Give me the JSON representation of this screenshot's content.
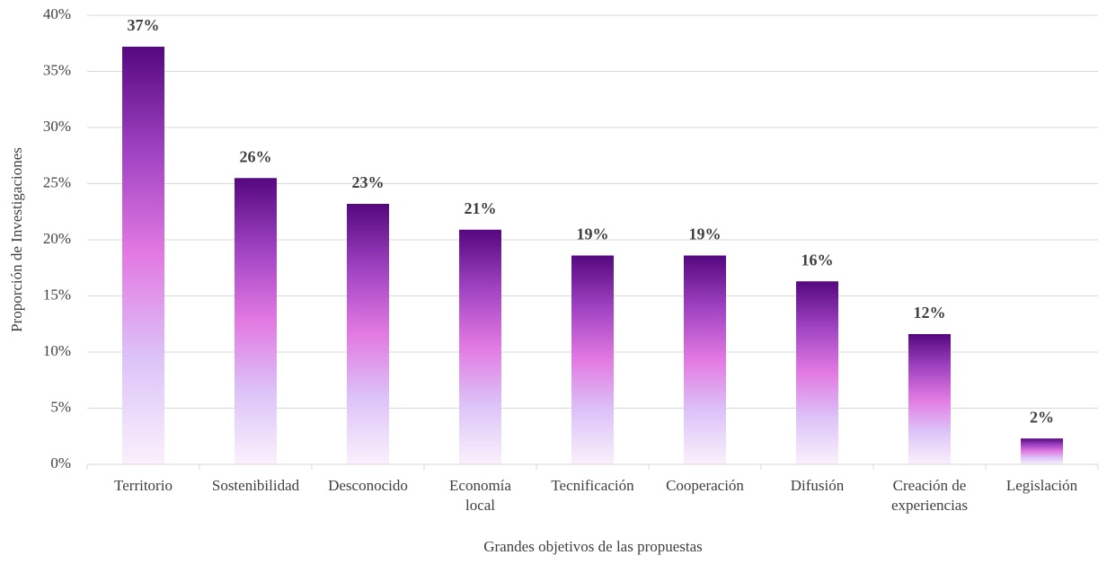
{
  "chart_data": {
    "type": "bar",
    "x_label": "Grandes objetivos de las propuestas",
    "y_label": "Proporción de Investigaciones",
    "categories": [
      "Territorio",
      "Sostenibilidad",
      "Desconocido",
      "Economía local",
      "Tecnificación",
      "Cooperación",
      "Difusión",
      "Creación de experiencias",
      "Legislación"
    ],
    "values": [
      37.2,
      25.5,
      23.2,
      20.9,
      18.6,
      18.6,
      16.3,
      11.6,
      2.3
    ],
    "value_labels": [
      "37%",
      "26%",
      "23%",
      "21%",
      "19%",
      "19%",
      "16%",
      "12%",
      "2%"
    ],
    "gradient_colors": [
      "#55087f",
      "#a043c2",
      "#e27ae2",
      "#dcc4f8",
      "#fbf0fc"
    ],
    "ylim": [
      0,
      40
    ],
    "yticks": [
      {
        "value": 0,
        "label": "0%"
      },
      {
        "value": 5,
        "label": "5%"
      },
      {
        "value": 10,
        "label": "10%"
      },
      {
        "value": 15,
        "label": "15%"
      },
      {
        "value": 20,
        "label": "20%"
      },
      {
        "value": 25,
        "label": "25%"
      },
      {
        "value": 30,
        "label": "30%"
      },
      {
        "value": 35,
        "label": "35%"
      },
      {
        "value": 40,
        "label": "40%"
      }
    ],
    "grid": true
  }
}
